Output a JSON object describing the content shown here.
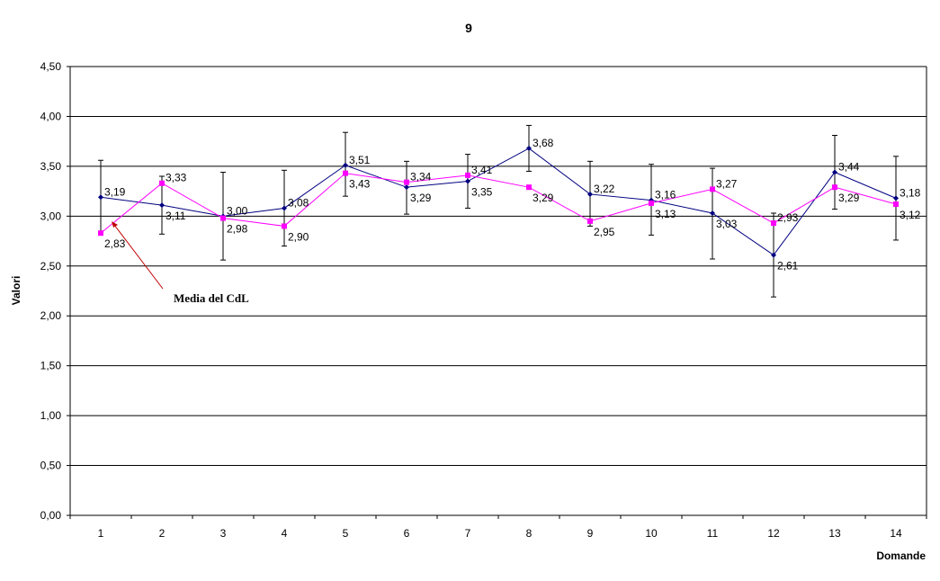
{
  "chart_data": {
    "type": "line",
    "title": "9",
    "xlabel": "Domande",
    "ylabel": "Valori",
    "categories": [
      "1",
      "2",
      "3",
      "4",
      "5",
      "6",
      "7",
      "8",
      "9",
      "10",
      "11",
      "12",
      "13",
      "14"
    ],
    "ylim": [
      0,
      4.5
    ],
    "yticks": [
      "0,00",
      "0,50",
      "1,00",
      "1,50",
      "2,00",
      "2,50",
      "3,00",
      "3,50",
      "4,00",
      "4,50"
    ],
    "grid": true,
    "legend": "none",
    "series": [
      {
        "color": "#000080",
        "marker": "diamond",
        "values": [
          3.19,
          3.11,
          3.0,
          3.08,
          3.51,
          3.29,
          3.35,
          3.68,
          3.22,
          3.16,
          3.03,
          2.61,
          3.44,
          3.18
        ],
        "labels": [
          "3,19",
          "3,11",
          "3,00",
          "3,08",
          "3,51",
          "3,29",
          "3,35",
          "3,68",
          "3,22",
          "3,16",
          "3,03",
          "2,61",
          "3,44",
          "3,18"
        ],
        "error_low": [
          2.82,
          2.82,
          2.56,
          2.7,
          3.2,
          3.02,
          3.08,
          3.45,
          2.9,
          2.81,
          2.57,
          2.19,
          3.07,
          2.76
        ],
        "error_high": [
          3.56,
          3.4,
          3.44,
          3.46,
          3.84,
          3.55,
          3.62,
          3.91,
          3.55,
          3.52,
          3.48,
          3.03,
          3.81,
          3.6
        ]
      },
      {
        "color": "#ff00ff",
        "marker": "square",
        "values": [
          2.83,
          3.33,
          2.98,
          2.9,
          3.43,
          3.34,
          3.41,
          3.29,
          2.95,
          3.13,
          3.27,
          2.93,
          3.29,
          3.12
        ],
        "labels": [
          "2,83",
          "3,33",
          "2,98",
          "2,90",
          "3,43",
          "3,34",
          "3,41",
          "3,29",
          "2,95",
          "3,13",
          "3,27",
          "2,93",
          "3,29",
          "3,12"
        ]
      }
    ],
    "annotation": {
      "text": "Media del CdL",
      "color": "#c00000"
    }
  }
}
